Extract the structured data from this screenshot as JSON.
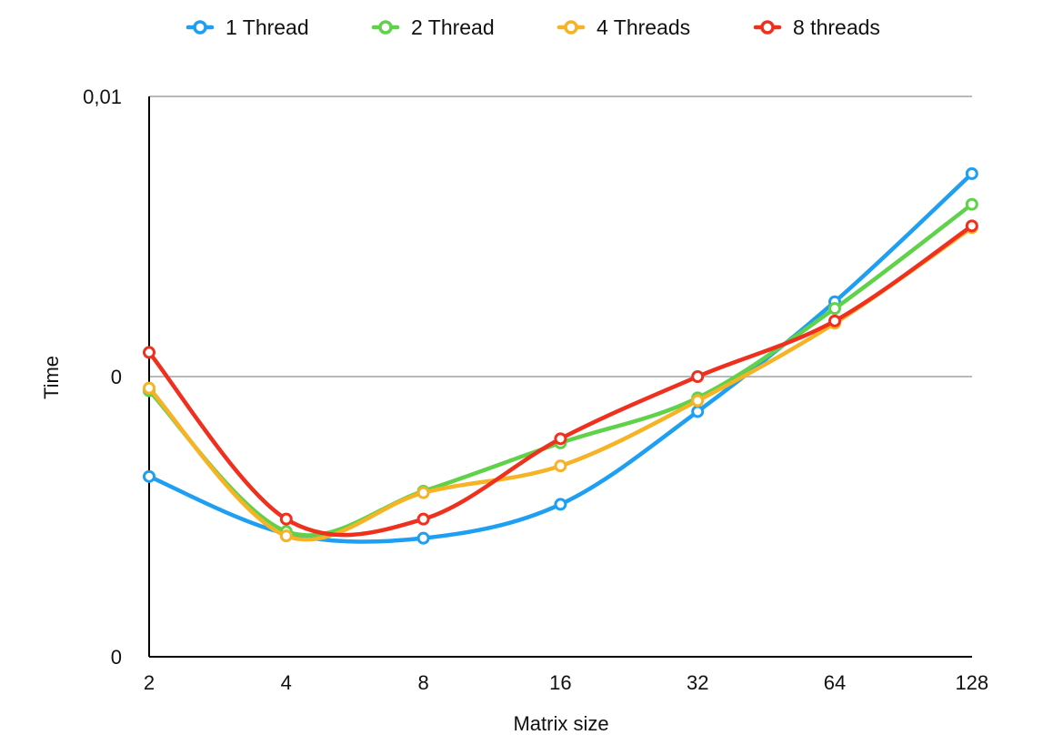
{
  "chart_data": {
    "type": "line",
    "title": "",
    "xlabel": "Matrix size",
    "ylabel": "Time",
    "categories": [
      "2",
      "4",
      "8",
      "16",
      "32",
      "64",
      "128"
    ],
    "y_scale": "log",
    "ylim": [
      0.0001,
      0.01
    ],
    "yticks": [
      {
        "value": 0.0001,
        "label": "0"
      },
      {
        "value": 0.001,
        "label": "0"
      },
      {
        "value": 0.01,
        "label": "0,01"
      }
    ],
    "grid": true,
    "smooth": true,
    "legend_position": "top-center",
    "series": [
      {
        "name": "1 Thread",
        "color": "#1e9ff2",
        "values": [
          0.00044,
          0.000275,
          0.000265,
          0.00035,
          0.00075,
          0.00185,
          0.0053
        ]
      },
      {
        "name": "2 Thread",
        "color": "#60d24a",
        "values": [
          0.00089,
          0.00028,
          0.00039,
          0.00058,
          0.00084,
          0.00175,
          0.00412
        ]
      },
      {
        "name": "4 Threads",
        "color": "#f5b325",
        "values": [
          0.00091,
          0.00027,
          0.000385,
          0.00048,
          0.00082,
          0.00155,
          0.0034
        ]
      },
      {
        "name": "8 threads",
        "color": "#f0301f",
        "values": [
          0.00122,
          0.00031,
          0.00031,
          0.0006,
          0.001,
          0.00158,
          0.00345
        ]
      }
    ]
  }
}
